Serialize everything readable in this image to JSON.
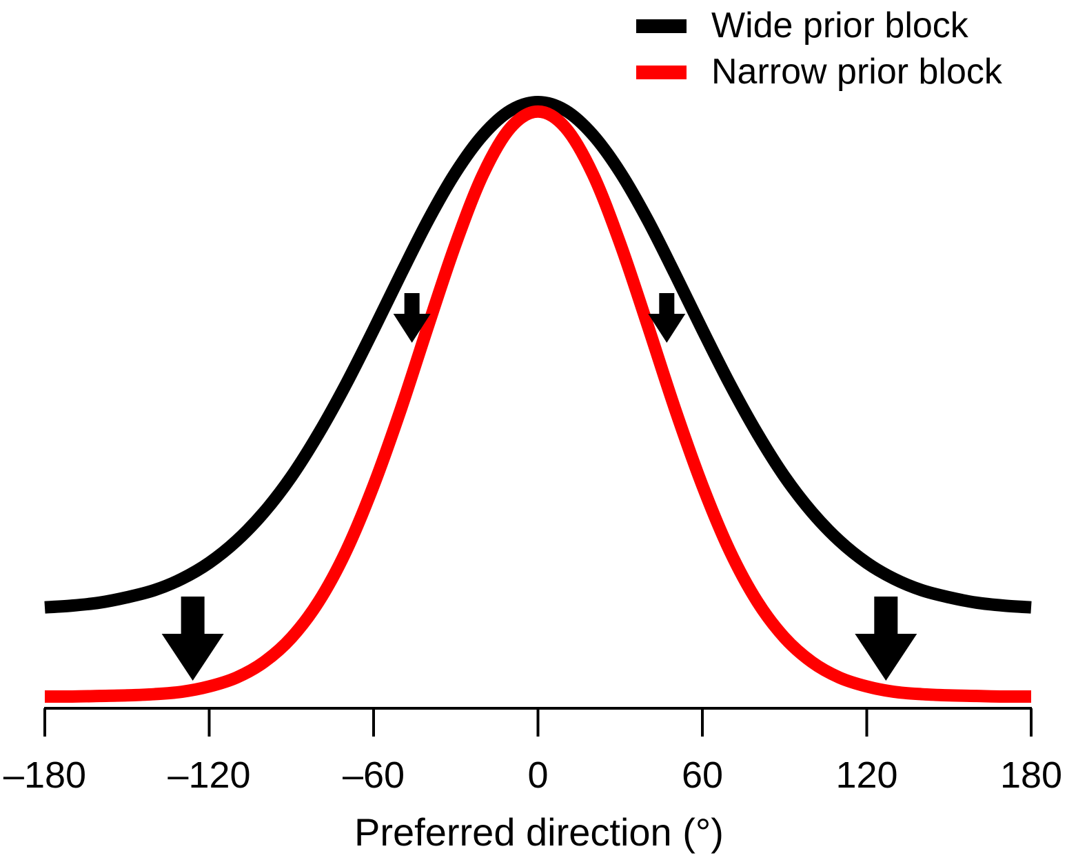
{
  "chart_data": {
    "type": "line",
    "title": "",
    "xlabel": "Preferred direction (°)",
    "ylabel": "",
    "xlim": [
      -180,
      180
    ],
    "ylim": [
      0,
      1
    ],
    "xticks": [
      -180,
      -120,
      -60,
      0,
      60,
      120,
      180
    ],
    "xtick_labels": [
      "–180",
      "–120",
      "–60",
      "0",
      "60",
      "120",
      "180"
    ],
    "grid": false,
    "legend_position": "top-right",
    "x": [
      -180,
      -170,
      -160,
      -150,
      -140,
      -130,
      -120,
      -110,
      -100,
      -90,
      -80,
      -70,
      -60,
      -50,
      -40,
      -30,
      -20,
      -10,
      0,
      10,
      20,
      30,
      40,
      50,
      60,
      70,
      80,
      90,
      100,
      110,
      120,
      130,
      140,
      150,
      160,
      170,
      180
    ],
    "series": [
      {
        "name": "Wide prior block",
        "color": "#000000",
        "values": [
          0.15,
          0.153,
          0.158,
          0.167,
          0.179,
          0.198,
          0.225,
          0.262,
          0.31,
          0.37,
          0.443,
          0.526,
          0.617,
          0.711,
          0.802,
          0.882,
          0.945,
          0.986,
          1.0,
          0.986,
          0.945,
          0.882,
          0.802,
          0.711,
          0.617,
          0.526,
          0.443,
          0.37,
          0.31,
          0.262,
          0.225,
          0.198,
          0.179,
          0.167,
          0.158,
          0.153,
          0.15
        ]
      },
      {
        "name": "Narrow prior block",
        "color": "#ff0000",
        "values": [
          0.0,
          0.0,
          0.001,
          0.002,
          0.004,
          0.008,
          0.017,
          0.032,
          0.058,
          0.099,
          0.16,
          0.245,
          0.355,
          0.484,
          0.625,
          0.762,
          0.879,
          0.957,
          0.984,
          0.957,
          0.879,
          0.762,
          0.625,
          0.484,
          0.355,
          0.245,
          0.16,
          0.099,
          0.058,
          0.032,
          0.017,
          0.008,
          0.004,
          0.002,
          0.001,
          0.0,
          0.0
        ]
      }
    ],
    "annotations": [
      {
        "type": "arrow-down",
        "x": -46,
        "size": "small"
      },
      {
        "type": "arrow-down",
        "x": 47,
        "size": "small"
      },
      {
        "type": "arrow-down",
        "x": -126,
        "size": "large"
      },
      {
        "type": "arrow-down",
        "x": 127,
        "size": "large"
      }
    ]
  }
}
